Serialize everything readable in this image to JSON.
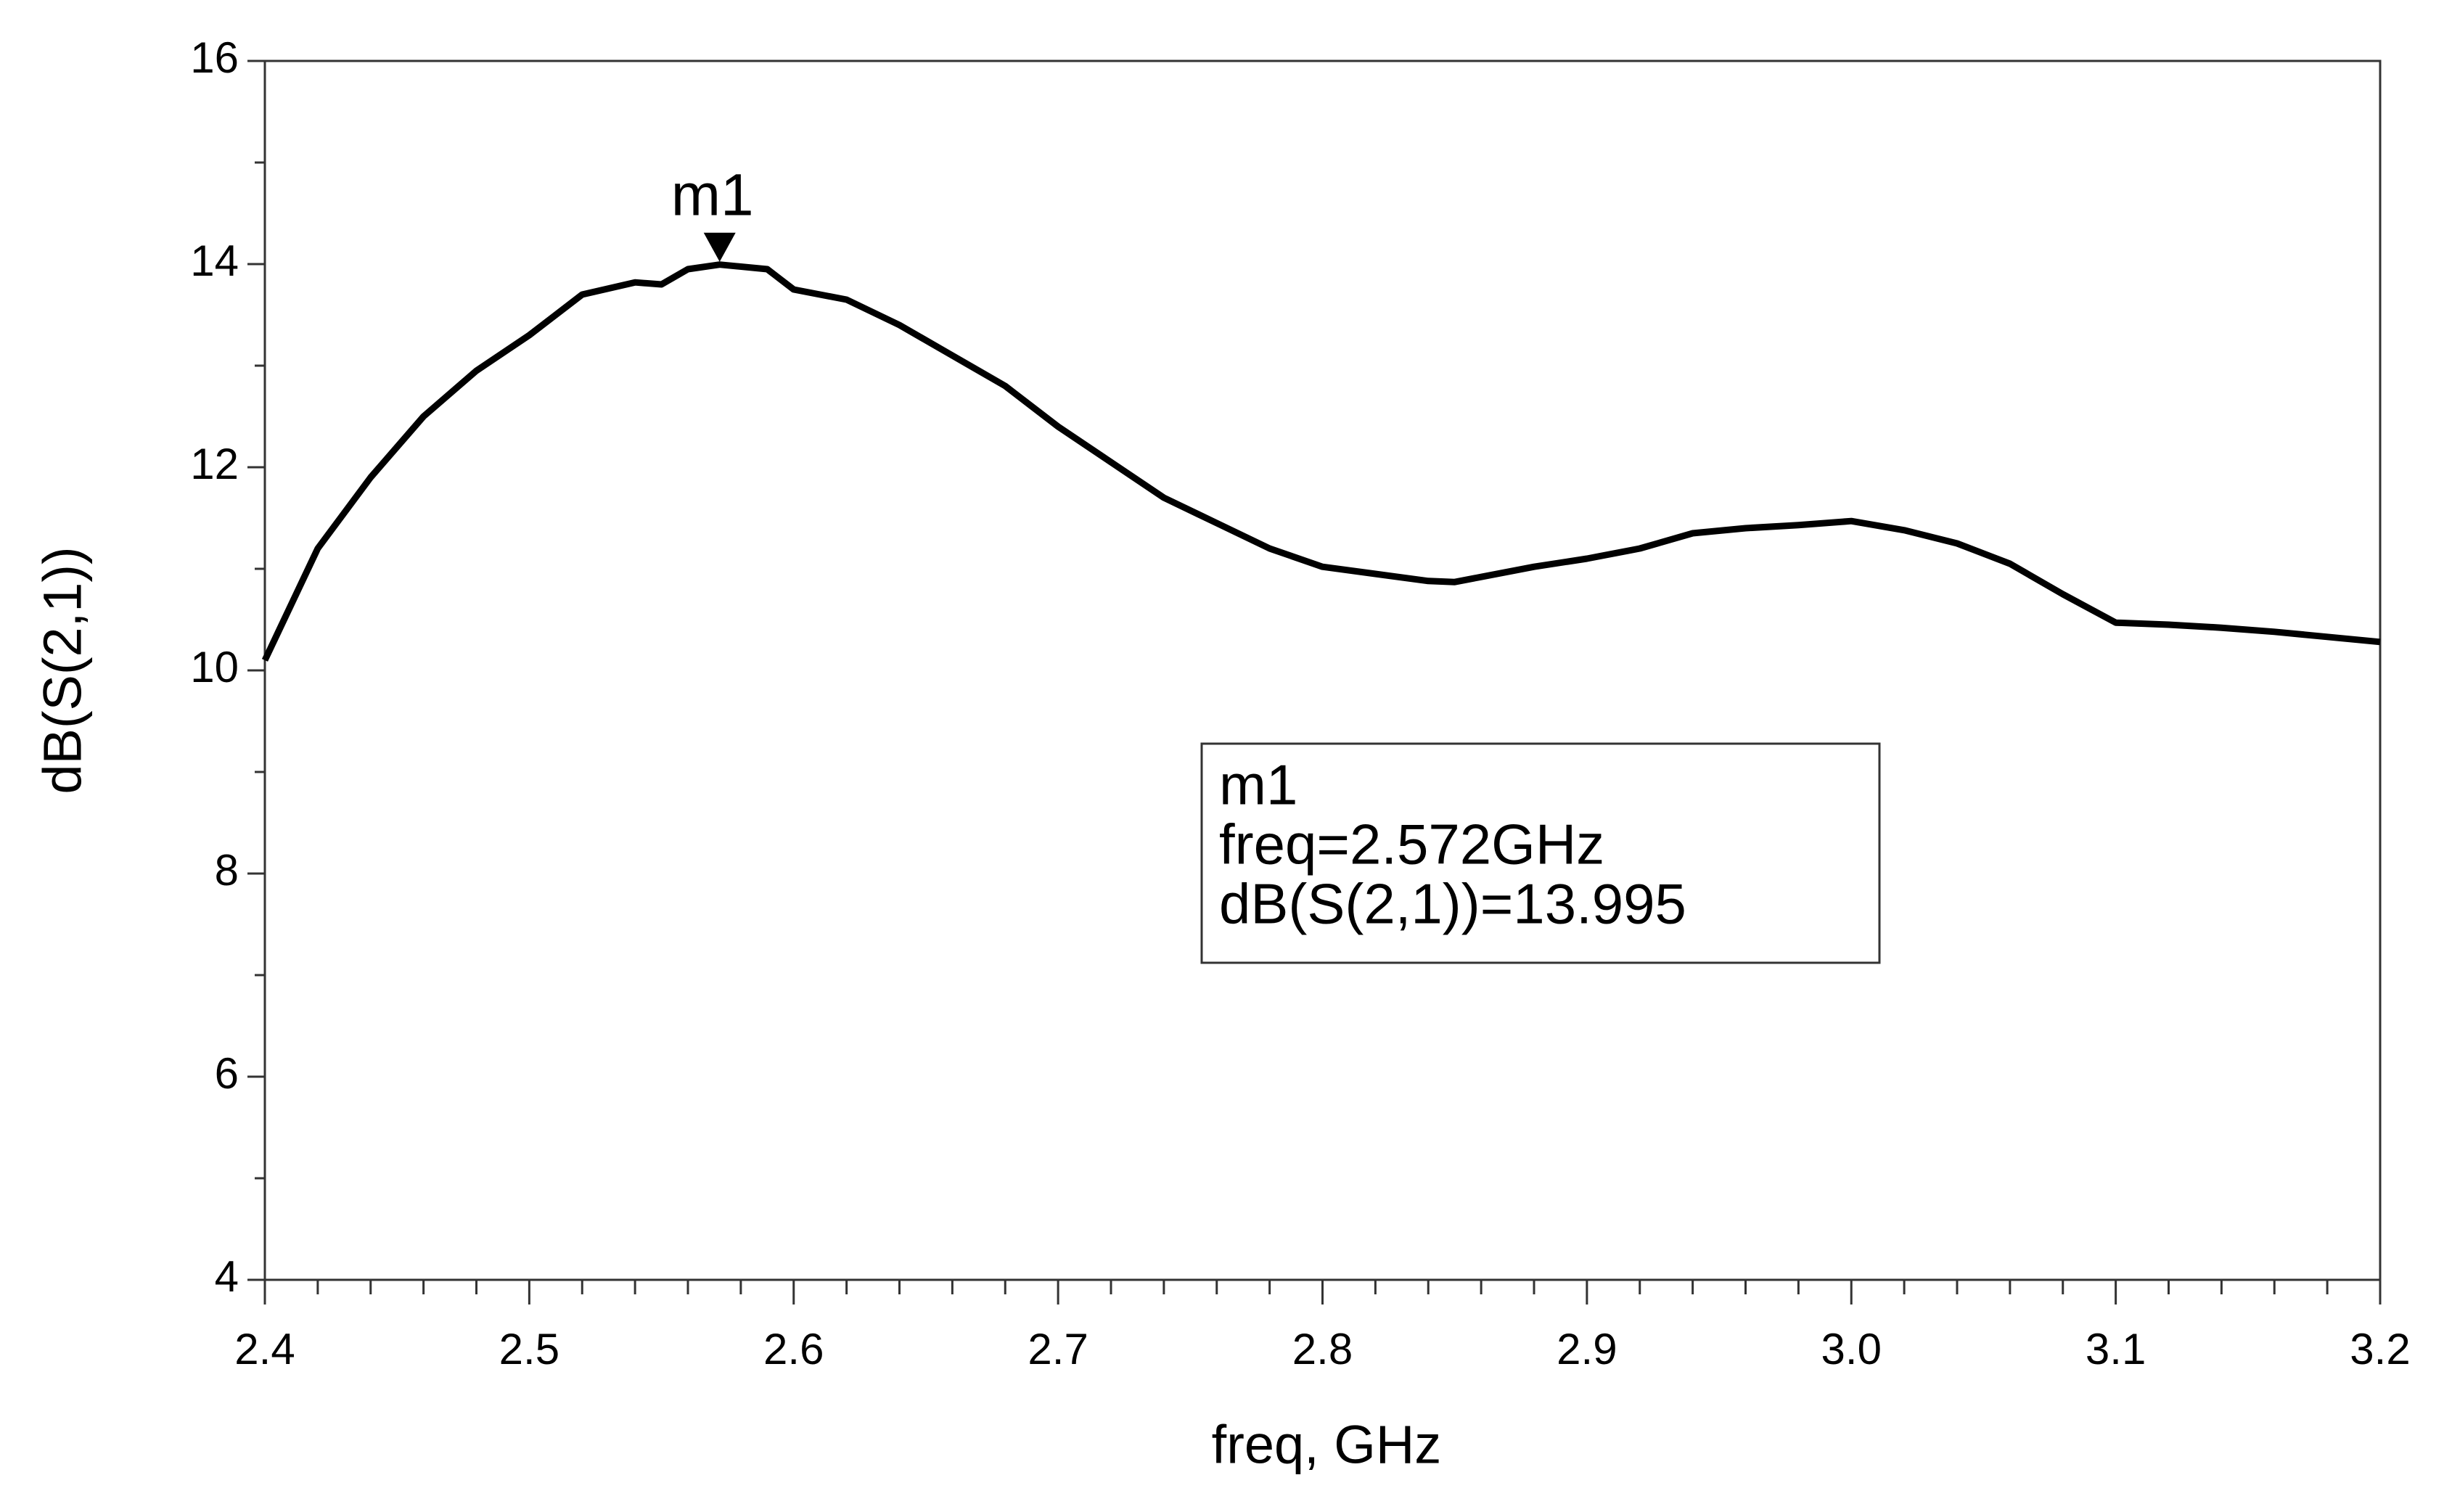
{
  "chart_data": {
    "type": "line",
    "xlabel": "freq, GHz",
    "ylabel": "dB(S(2,1))",
    "xlim": [
      2.4,
      3.2
    ],
    "ylim": [
      4,
      16
    ],
    "xticks": [
      2.4,
      2.5,
      2.6,
      2.7,
      2.8,
      2.9,
      {
        "value": 3,
        "label": "3.0"
      },
      3.1,
      3.2
    ],
    "yticks": [
      4,
      6,
      8,
      10,
      12,
      14,
      16
    ],
    "xminorticks": [
      2.42,
      2.44,
      2.46,
      2.48,
      2.52,
      2.54,
      2.56,
      2.58,
      2.62,
      2.64,
      2.66,
      2.68,
      2.72,
      2.74,
      2.76,
      2.78,
      2.82,
      2.84,
      2.86,
      2.88,
      2.92,
      2.94,
      2.96,
      2.98,
      3.02,
      3.04,
      3.06,
      3.08,
      3.12,
      3.14,
      3.16,
      3.18
    ],
    "yminorticks": [
      5,
      7,
      9,
      11,
      13,
      15
    ],
    "series": [
      {
        "color": "#000000",
        "x": [
          2.4,
          2.42,
          2.44,
          2.46,
          2.48,
          2.5,
          2.52,
          2.54,
          2.55,
          2.56,
          2.572,
          2.59,
          2.6,
          2.62,
          2.64,
          2.66,
          2.68,
          2.7,
          2.72,
          2.74,
          2.76,
          2.78,
          2.8,
          2.82,
          2.84,
          2.85,
          2.86,
          2.88,
          2.9,
          2.92,
          2.94,
          2.96,
          2.98,
          3.0,
          3.02,
          3.04,
          3.06,
          3.08,
          3.1,
          3.12,
          3.14,
          3.16,
          3.18,
          3.2
        ],
        "values": [
          10.1,
          11.2,
          11.9,
          12.5,
          12.95,
          13.3,
          13.7,
          13.82,
          13.8,
          13.95,
          13.995,
          13.95,
          13.75,
          13.65,
          13.4,
          13.1,
          12.8,
          12.4,
          12.05,
          11.7,
          11.45,
          11.2,
          11.02,
          10.95,
          10.88,
          10.87,
          10.92,
          11.02,
          11.1,
          11.2,
          11.35,
          11.4,
          11.43,
          11.47,
          11.38,
          11.25,
          11.05,
          10.75,
          10.47,
          10.45,
          10.42,
          10.38,
          10.33,
          10.28
        ]
      }
    ],
    "marker": {
      "label": "m1",
      "x": 2.572,
      "y": 13.995,
      "readout": [
        "m1",
        "freq=2.572GHz",
        "dB(S(2,1))=13.995"
      ]
    }
  }
}
